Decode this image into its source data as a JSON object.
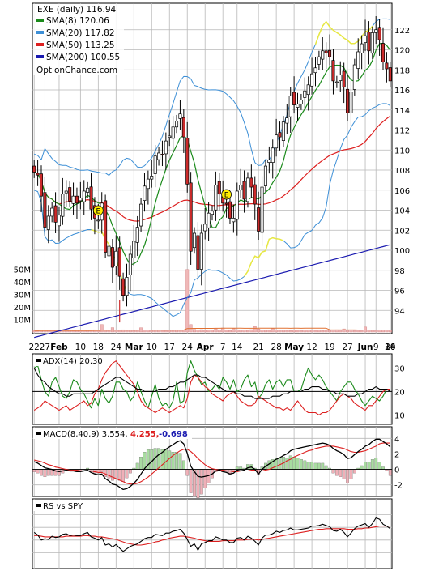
{
  "chart_data": [
    {
      "type": "candlestick",
      "title": "EXE (daily) 116.94",
      "watermark": "OptionChance.com",
      "ylim": [
        92,
        124
      ],
      "yticks": [
        "94",
        "96",
        "98",
        "100",
        "102",
        "104",
        "106",
        "108",
        "110",
        "112",
        "114",
        "116",
        "118",
        "120",
        "122"
      ],
      "volume_ticks": [
        "10M",
        "20M",
        "30M",
        "40M",
        "50M"
      ],
      "volume_ylim": [
        0,
        55
      ],
      "xticks": [
        "22",
        "27",
        "Feb",
        "10",
        "18",
        "24",
        "Mar",
        "10",
        "17",
        "24",
        "Apr",
        "7",
        "14",
        "21",
        "28",
        "May",
        "12",
        "19",
        "27",
        "Jun",
        "9",
        "16",
        "24",
        "30"
      ],
      "legend": [
        {
          "label": "SMA(8) 120.06",
          "color": "#1a8a1a"
        },
        {
          "label": "SMA(20) 117.82",
          "color": "#3d8fd6"
        },
        {
          "label": "SMA(50) 113.25",
          "color": "#dd1f1f"
        },
        {
          "label": "SMA(200) 100.55",
          "color": "#1a1ab0"
        }
      ],
      "legend_position": "top-left",
      "earnings_marker": "E",
      "earnings_x": [
        18,
        54
      ],
      "colors": {
        "up": "#ffffff",
        "down": "#cc2b2b",
        "wick": "#000000",
        "bb_upper": "#3d8fd6",
        "bb_lower": "#3d8fd6",
        "bb_alert": "#e8e840",
        "volume_up": "#f0b8b8",
        "volume_avg": "#e07030"
      },
      "close": [
        107.8,
        107.5,
        105.4,
        102.3,
        103.4,
        104.2,
        102.8,
        103.5,
        105.6,
        105.9,
        104.9,
        105.4,
        104.7,
        105.2,
        105.9,
        106.2,
        104.1,
        103.2,
        103.0,
        104.7,
        99.8,
        100.4,
        98.3,
        99.9,
        97.4,
        95.5,
        97.3,
        99.6,
        100.9,
        102.3,
        104.6,
        106.4,
        107.1,
        107.4,
        109.4,
        109.7,
        109.5,
        110.9,
        111.4,
        112.3,
        112.9,
        113.6,
        111.3,
        106.6,
        99.9,
        101.7,
        98.1,
        101.7,
        102.6,
        103.7,
        103.9,
        106.5,
        105.6,
        104.7,
        104.6,
        103.2,
        103.2,
        105.9,
        106.5,
        105.1,
        107.2,
        106.3,
        104.6,
        101.9,
        106.3,
        108.4,
        109.0,
        110.2,
        111.5,
        111.3,
        112.8,
        113.2,
        115.4,
        114.5,
        114.6,
        115.0,
        115.9,
        116.5,
        117.6,
        118.2,
        119.3,
        119.9,
        119.7,
        119.3,
        116.9,
        116.8,
        117.5,
        116.3,
        113.7,
        115.8,
        118.5,
        119.8,
        120.6,
        121.4,
        119.9,
        121.7,
        122.0,
        121.0,
        118.8,
        118.1,
        116.9
      ],
      "volume": [
        1.2,
        1.0,
        1.4,
        1.6,
        1.1,
        1.2,
        1.0,
        1.3,
        1.1,
        1.5,
        1.2,
        1.0,
        1.1,
        1.3,
        1.4,
        1.2,
        1.5,
        1.8,
        1.3,
        6.0,
        1.6,
        1.2,
        3.5,
        1.4,
        1.3,
        1.8,
        1.2,
        1.4,
        1.1,
        1.3,
        3.4,
        1.4,
        1.6,
        1.2,
        1.3,
        1.4,
        1.2,
        1.1,
        1.3,
        1.2,
        1.5,
        1.3,
        1.4,
        50.0,
        6.0,
        2.1,
        1.6,
        1.9,
        1.3,
        1.5,
        1.4,
        2.6,
        1.8,
        3.2,
        1.4,
        1.2,
        2.9,
        1.8,
        1.4,
        1.6,
        1.3,
        1.9,
        4.4,
        2.4,
        1.5,
        1.4,
        1.3,
        2.8,
        1.6,
        1.3,
        1.4,
        1.2,
        1.1,
        1.4,
        1.3,
        1.2,
        1.5,
        1.6,
        1.3,
        1.2,
        1.4,
        1.1,
        1.3,
        1.2,
        1.4,
        1.8,
        1.3,
        2.5,
        1.2,
        1.4,
        1.1,
        1.3,
        1.2,
        4.0,
        1.4,
        1.3,
        1.2,
        1.5,
        1.6,
        1.4,
        1.5
      ]
    },
    {
      "type": "line",
      "title": "ADX(14) 20.30",
      "ylim": [
        6,
        36
      ],
      "yticks": [
        "10",
        "20",
        "30"
      ],
      "reference_line": 20,
      "series": [
        {
          "values": [
            30,
            31,
            25,
            20,
            18,
            24,
            26,
            22,
            18,
            17,
            20,
            25,
            24,
            21,
            19,
            16,
            13,
            17,
            14,
            21,
            17,
            15,
            18,
            24,
            24,
            21,
            20,
            16,
            18,
            24,
            20,
            16,
            13,
            18,
            23,
            17,
            14,
            15,
            13,
            16,
            24,
            15,
            16,
            28,
            33,
            29,
            26,
            23,
            24,
            20,
            21,
            23,
            21,
            26,
            24,
            21,
            25,
            20,
            21,
            25,
            27,
            22,
            24,
            17,
            19,
            23,
            25,
            21,
            24,
            25,
            22,
            25,
            25,
            20,
            20,
            21,
            26,
            30,
            27,
            25,
            27,
            25,
            22,
            20,
            18,
            16,
            20,
            22,
            24,
            24,
            21,
            19,
            16,
            14,
            16,
            18,
            17,
            16,
            18,
            21,
            21
          ],
          "color": "#1a8a1a"
        },
        {
          "values": [
            12,
            13,
            14,
            16,
            15,
            14,
            13,
            12,
            13,
            14,
            12,
            13,
            14,
            15,
            16,
            14,
            15,
            19,
            21,
            25,
            28,
            30,
            32,
            33,
            31,
            29,
            27,
            25,
            23,
            20,
            16,
            14,
            13,
            12,
            11,
            12,
            13,
            12,
            11,
            12,
            13,
            14,
            13,
            17,
            24,
            27,
            26,
            24,
            22,
            21,
            19,
            18,
            17,
            16,
            18,
            19,
            20,
            18,
            16,
            15,
            14,
            14,
            15,
            18,
            17,
            16,
            15,
            14,
            13,
            13,
            12,
            13,
            12,
            14,
            16,
            14,
            12,
            11,
            11,
            11,
            10,
            11,
            11,
            12,
            14,
            16,
            18,
            19,
            18,
            17,
            15,
            14,
            13,
            12,
            14,
            14,
            16,
            18,
            20,
            21,
            21
          ],
          "color": "#dd1f1f"
        },
        {
          "values": [
            30,
            27,
            25,
            24,
            22,
            21,
            20,
            19,
            19,
            18,
            18,
            19,
            19,
            19,
            19,
            19,
            19,
            20,
            21,
            22,
            23,
            24,
            25,
            26,
            26,
            25,
            24,
            23,
            22,
            21,
            21,
            20,
            20,
            20,
            20,
            21,
            21,
            21,
            22,
            22,
            23,
            24,
            24,
            25,
            26,
            27,
            27,
            26,
            26,
            25,
            24,
            23,
            22,
            21,
            20,
            20,
            20,
            19,
            19,
            18,
            18,
            18,
            17,
            17,
            17,
            17,
            17,
            18,
            18,
            18,
            19,
            19,
            20,
            20,
            20,
            20,
            21,
            21,
            22,
            22,
            22,
            21,
            21,
            20,
            20,
            19,
            19,
            19,
            18,
            18,
            18,
            19,
            19,
            20,
            21,
            21,
            22,
            21,
            21,
            21,
            20
          ],
          "color": "#000000"
        }
      ]
    },
    {
      "type": "bar+line",
      "title": "MACD(8,40,9) 3.554,",
      "subtitle_values": [
        "4.255,",
        "-0.698"
      ],
      "subtitle_colors": [
        "#dd1f1f",
        "#1a1ab0"
      ],
      "ylim": [
        -3.5,
        5.5
      ],
      "yticks": [
        "4",
        "2",
        "0",
        "-2"
      ],
      "series": [
        {
          "name": "MACD",
          "values": [
            1.0,
            0.8,
            0.5,
            0.2,
            0.1,
            0.0,
            -0.2,
            -0.3,
            -0.2,
            -0.1,
            -0.2,
            -0.2,
            -0.3,
            -0.3,
            -0.2,
            -0.1,
            -0.4,
            -0.6,
            -0.7,
            -0.6,
            -1.2,
            -1.5,
            -1.9,
            -2.0,
            -2.3,
            -2.6,
            -2.5,
            -2.2,
            -1.8,
            -1.3,
            -0.6,
            0.1,
            0.6,
            1.0,
            1.5,
            1.9,
            2.2,
            2.6,
            2.9,
            3.2,
            3.5,
            3.7,
            3.3,
            2.1,
            0.4,
            -0.3,
            -0.9,
            -1.0,
            -0.9,
            -0.8,
            -0.6,
            -0.2,
            -0.1,
            -0.3,
            -0.4,
            -0.6,
            -0.5,
            -0.1,
            0.0,
            -0.1,
            0.2,
            0.3,
            0.0,
            -0.6,
            0.0,
            0.4,
            0.7,
            1.0,
            1.3,
            1.5,
            1.8,
            2.0,
            2.4,
            2.6,
            2.7,
            2.8,
            2.9,
            3.0,
            3.1,
            3.2,
            3.3,
            3.4,
            3.3,
            3.1,
            2.7,
            2.4,
            2.2,
            1.9,
            1.4,
            1.5,
            1.9,
            2.3,
            2.6,
            3.0,
            3.2,
            3.6,
            3.9,
            3.9,
            3.6,
            3.3,
            2.9
          ],
          "color": "#000000"
        },
        {
          "name": "signal",
          "values": [
            1.2,
            1.1,
            1.0,
            0.8,
            0.6,
            0.5,
            0.3,
            0.2,
            0.1,
            0.0,
            -0.1,
            -0.1,
            -0.1,
            -0.2,
            -0.2,
            -0.2,
            -0.2,
            -0.3,
            -0.4,
            -0.4,
            -0.6,
            -0.8,
            -1.0,
            -1.2,
            -1.4,
            -1.6,
            -1.8,
            -1.9,
            -1.9,
            -1.8,
            -1.6,
            -1.3,
            -1.0,
            -0.6,
            -0.2,
            0.2,
            0.6,
            1.0,
            1.4,
            1.8,
            2.1,
            2.4,
            2.6,
            2.6,
            2.3,
            1.9,
            1.4,
            1.0,
            0.6,
            0.3,
            0.1,
            0.0,
            -0.1,
            -0.1,
            -0.2,
            -0.2,
            -0.3,
            -0.3,
            -0.2,
            -0.2,
            -0.2,
            -0.1,
            -0.1,
            -0.2,
            -0.2,
            -0.1,
            0.0,
            0.2,
            0.4,
            0.6,
            0.8,
            1.1,
            1.3,
            1.6,
            1.8,
            2.0,
            2.2,
            2.4,
            2.5,
            2.7,
            2.8,
            2.9,
            3.0,
            3.0,
            3.0,
            2.9,
            2.8,
            2.7,
            2.5,
            2.3,
            2.2,
            2.2,
            2.3,
            2.4,
            2.6,
            2.8,
            3.0,
            3.3,
            3.4,
            3.4,
            3.4
          ],
          "color": "#dd1f1f"
        }
      ],
      "histogram_colors": {
        "positive": "#a8dca0",
        "negative": "#f0b0b8"
      }
    },
    {
      "type": "line",
      "title": "RS vs SPY",
      "ylim": [
        0,
        100
      ],
      "series": [
        {
          "name": "RS",
          "values": [
            52,
            48,
            40,
            42,
            41,
            46,
            44,
            45,
            49,
            50,
            47,
            48,
            47,
            47,
            50,
            52,
            45,
            43,
            40,
            44,
            32,
            34,
            29,
            33,
            27,
            22,
            26,
            30,
            32,
            34,
            38,
            42,
            44,
            44,
            49,
            48,
            47,
            51,
            51,
            54,
            55,
            57,
            51,
            41,
            30,
            34,
            24,
            34,
            36,
            39,
            39,
            45,
            43,
            40,
            40,
            36,
            36,
            43,
            44,
            40,
            46,
            43,
            38,
            32,
            43,
            48,
            48,
            50,
            54,
            52,
            55,
            56,
            59,
            56,
            56,
            57,
            58,
            59,
            62,
            62,
            63,
            65,
            63,
            61,
            55,
            54,
            57,
            52,
            45,
            51,
            58,
            62,
            64,
            66,
            60,
            66,
            75,
            73,
            65,
            62,
            58
          ],
          "color": "#000000"
        },
        {
          "name": "RS average",
          "values": [
            47,
            47,
            46,
            45,
            45,
            45,
            45,
            45,
            45,
            46,
            46,
            46,
            46,
            46,
            47,
            47,
            46,
            46,
            45,
            45,
            44,
            43,
            42,
            41,
            39,
            37,
            35,
            34,
            33,
            32,
            32,
            33,
            34,
            35,
            37,
            38,
            40,
            41,
            43,
            44,
            45,
            46,
            46,
            45,
            44,
            43,
            41,
            40,
            39,
            38,
            38,
            38,
            38,
            39,
            39,
            39,
            39,
            40,
            40,
            40,
            41,
            41,
            41,
            40,
            41,
            42,
            43,
            44,
            45,
            46,
            47,
            48,
            49,
            50,
            51,
            52,
            53,
            54,
            55,
            56,
            57,
            57,
            58,
            58,
            58,
            58,
            58,
            58,
            57,
            57,
            57,
            58,
            58,
            59,
            59,
            60,
            61,
            62,
            62,
            62,
            62
          ],
          "color": "#dd1f1f"
        }
      ]
    }
  ]
}
